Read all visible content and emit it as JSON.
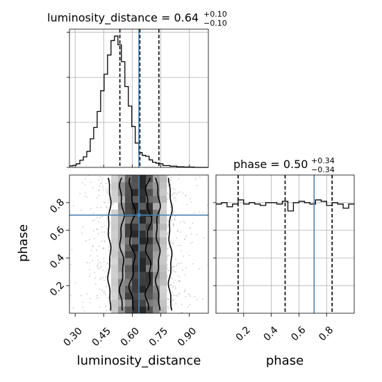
{
  "chart_data": [
    {
      "type": "histogram",
      "panel": "marginal-luminosity-distance",
      "title_param": "luminosity_distance",
      "title_median": "0.64",
      "title_plus": "+0.10",
      "title_minus": "−0.10",
      "xlim": [
        0.27,
        1.0
      ],
      "bin_edges_start": 0.27,
      "bin_width": 0.0182,
      "counts": [
        0.5,
        0.7,
        1.2,
        2.4,
        3.5,
        5.3,
        9.5,
        13.3,
        18.6,
        25.5,
        31.0,
        37.4,
        42.2,
        43.7,
        40.8,
        35.2,
        26.9,
        20.4,
        13.6,
        8.1,
        4.9,
        4.0,
        3.7,
        2.5,
        1.7,
        1.4,
        1.2,
        0.6,
        0.6,
        0.4,
        0.4,
        0.2,
        0.2,
        0.1,
        0.1,
        0.1,
        0.0,
        0.0,
        0.0,
        0.0
      ],
      "ylim": [
        0,
        46
      ],
      "quantiles": [
        0.535,
        0.64,
        0.74
      ],
      "truth": 0.635
    },
    {
      "type": "histogram2d-contour",
      "panel": "joint-luminosity-distance-phase",
      "xlabel": "luminosity_distance",
      "ylabel": "phase",
      "xlim": [
        0.27,
        1.0
      ],
      "ylim": [
        0.0,
        1.0
      ],
      "xticks": [
        0.3,
        0.45,
        0.6,
        0.75,
        0.9
      ],
      "xtick_labels": [
        "0.30",
        "0.45",
        "0.60",
        "0.75",
        "0.90"
      ],
      "yticks": [
        0.2,
        0.4,
        0.6,
        0.8
      ],
      "ytick_labels": [
        "0.2",
        "0.4",
        "0.6",
        "0.8"
      ],
      "truth": {
        "x": 0.635,
        "y": 0.71
      }
    },
    {
      "type": "histogram",
      "panel": "marginal-phase",
      "title_param": "phase",
      "title_median": "0.50",
      "title_plus": "+0.34",
      "title_minus": "−0.34",
      "xlabel": "phase",
      "xlim": [
        0.0,
        1.0
      ],
      "bin_edges_start": 0.0,
      "bin_width": 0.04,
      "counts": [
        0.79,
        0.8,
        0.77,
        0.79,
        0.82,
        0.79,
        0.8,
        0.79,
        0.78,
        0.8,
        0.8,
        0.79,
        0.81,
        0.74,
        0.8,
        0.81,
        0.8,
        0.79,
        0.82,
        0.81,
        0.78,
        0.8,
        0.79,
        0.76,
        0.79
      ],
      "ylim": [
        0,
        1.0
      ],
      "quantiles": [
        0.16,
        0.5,
        0.84
      ],
      "truth": 0.71,
      "xticks": [
        0.2,
        0.4,
        0.6,
        0.8
      ],
      "xtick_labels": [
        "0.2",
        "0.4",
        "0.6",
        "0.8"
      ]
    }
  ]
}
